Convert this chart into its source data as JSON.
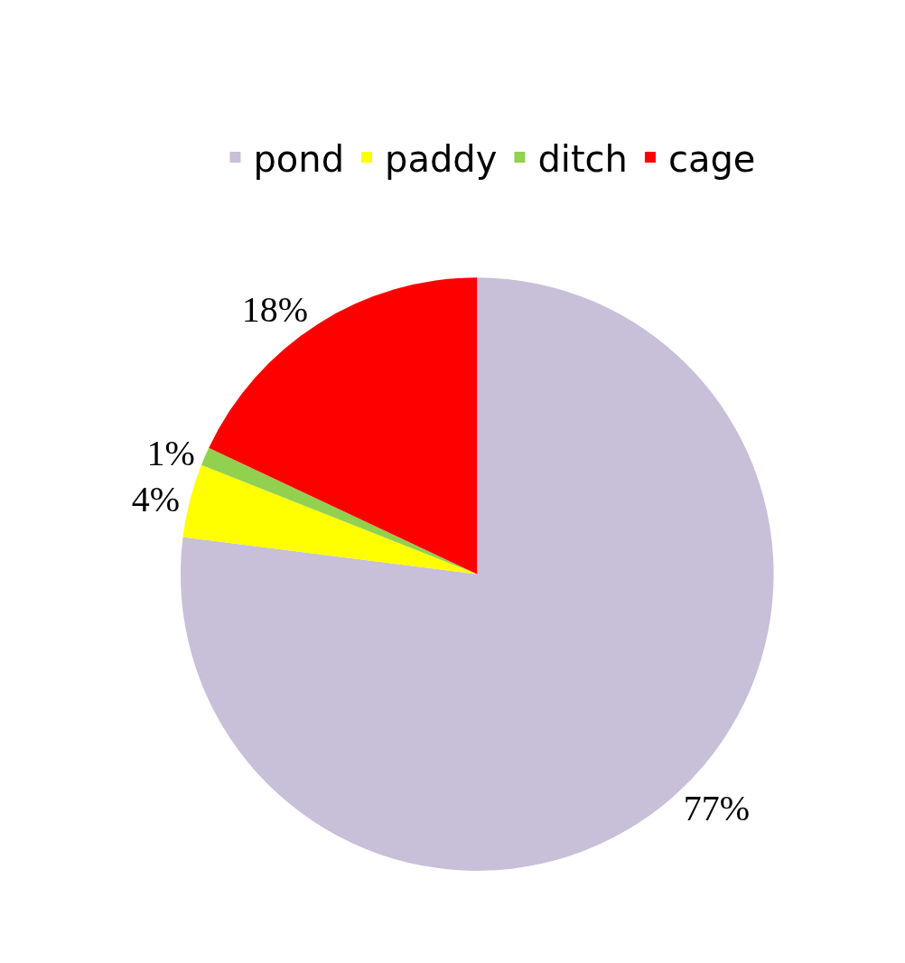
{
  "chart_data": {
    "type": "pie",
    "categories": [
      "pond",
      "paddy",
      "ditch",
      "cage"
    ],
    "values": [
      77,
      4,
      1,
      18
    ],
    "colors": [
      "#c8bfd9",
      "#ffff00",
      "#92d050",
      "#ff0000"
    ],
    "value_labels": [
      "77%",
      "4%",
      "1%",
      "18%"
    ],
    "legend": "top"
  }
}
